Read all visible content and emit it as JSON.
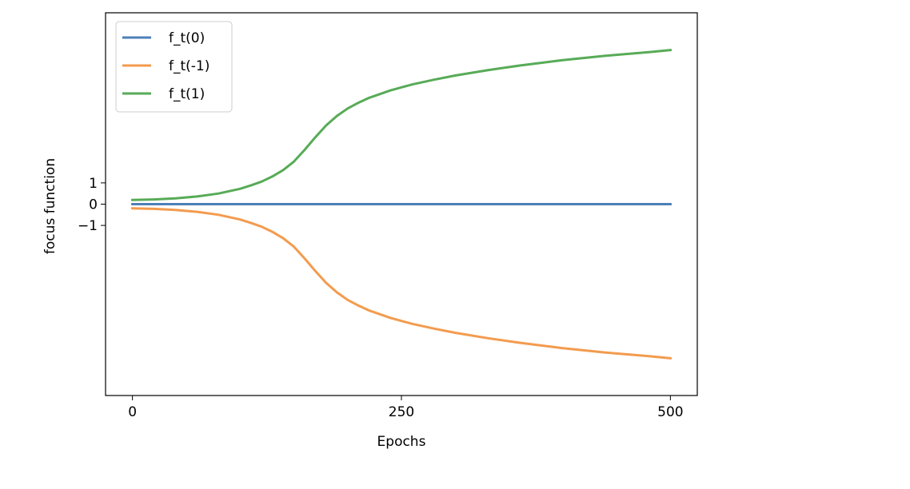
{
  "chart_data": {
    "type": "line",
    "xlabel": "Epochs",
    "ylabel": "focus function",
    "xlim": [
      -25,
      525
    ],
    "ylim": [
      -9,
      9
    ],
    "xticks": [
      0,
      250,
      500
    ],
    "xtick_labels": [
      "0",
      "250",
      "500"
    ],
    "yticks": [
      -1,
      0,
      1
    ],
    "ytick_labels": [
      "−1",
      "0",
      "1"
    ],
    "grid": false,
    "legend_position": "upper-left",
    "series": [
      {
        "name": "f_t(0)",
        "color": "#4c7fb8",
        "x": [
          0,
          500
        ],
        "y": [
          0,
          0
        ]
      },
      {
        "name": "f_t(-1)",
        "color": "#f39b4e",
        "x": [
          0,
          20,
          40,
          60,
          80,
          100,
          110,
          120,
          130,
          140,
          150,
          160,
          170,
          180,
          190,
          200,
          210,
          220,
          240,
          260,
          280,
          300,
          330,
          360,
          400,
          440,
          480,
          500
        ],
        "y": [
          -0.2,
          -0.22,
          -0.27,
          -0.36,
          -0.5,
          -0.72,
          -0.88,
          -1.06,
          -1.3,
          -1.6,
          -2.0,
          -2.55,
          -3.15,
          -3.7,
          -4.15,
          -4.5,
          -4.77,
          -5.0,
          -5.35,
          -5.63,
          -5.85,
          -6.05,
          -6.3,
          -6.52,
          -6.77,
          -6.98,
          -7.15,
          -7.25
        ]
      },
      {
        "name": "f_t(1)",
        "color": "#57ab57",
        "x": [
          0,
          20,
          40,
          60,
          80,
          100,
          110,
          120,
          130,
          140,
          150,
          160,
          170,
          180,
          190,
          200,
          210,
          220,
          240,
          260,
          280,
          300,
          330,
          360,
          400,
          440,
          480,
          500
        ],
        "y": [
          0.2,
          0.22,
          0.27,
          0.36,
          0.5,
          0.72,
          0.88,
          1.06,
          1.3,
          1.6,
          2.0,
          2.55,
          3.15,
          3.7,
          4.15,
          4.5,
          4.77,
          5.0,
          5.35,
          5.63,
          5.85,
          6.05,
          6.3,
          6.52,
          6.77,
          6.98,
          7.15,
          7.25
        ]
      }
    ]
  }
}
